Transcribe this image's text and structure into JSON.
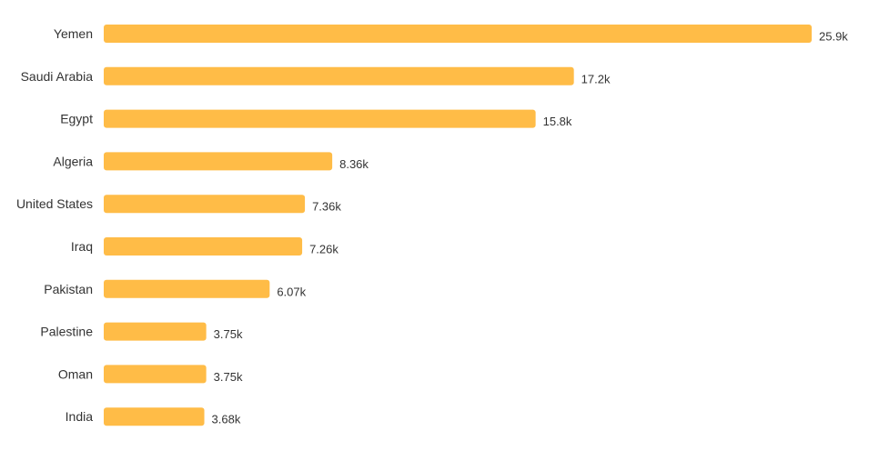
{
  "chart_data": {
    "type": "bar",
    "orientation": "horizontal",
    "categories": [
      "Yemen",
      "Saudi Arabia",
      "Egypt",
      "Algeria",
      "United States",
      "Iraq",
      "Pakistan",
      "Palestine",
      "Oman",
      "India"
    ],
    "values": [
      25900,
      17200,
      15800,
      8360,
      7360,
      7260,
      6070,
      3750,
      3750,
      3680
    ],
    "value_labels": [
      "25.9k",
      "17.2k",
      "15.8k",
      "8.36k",
      "7.36k",
      "7.26k",
      "6.07k",
      "3.75k",
      "3.75k",
      "3.68k"
    ],
    "bar_color": "#FFBC47",
    "xlim": [
      0,
      25900
    ],
    "grid": false,
    "legend": "none"
  }
}
